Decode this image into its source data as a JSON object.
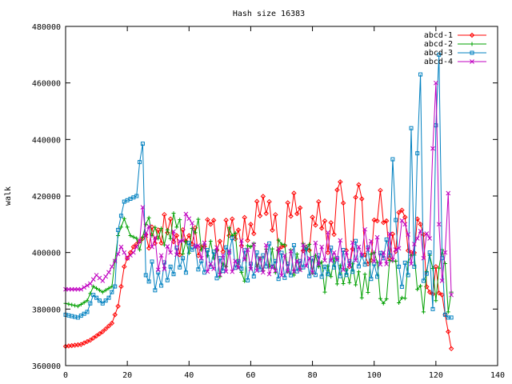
{
  "chart_data": {
    "type": "line",
    "title": "Hash size 16383",
    "xlabel": "",
    "ylabel": "walk",
    "xlim": [
      0,
      140
    ],
    "ylim": [
      360000,
      480000
    ],
    "xticks": [
      0,
      20,
      40,
      60,
      80,
      100,
      120,
      140
    ],
    "yticks": [
      360000,
      380000,
      400000,
      420000,
      440000,
      460000,
      480000
    ],
    "grid": false,
    "legend": "top-right",
    "series": [
      {
        "name": "abcd-1",
        "color": "#ff0000",
        "marker": "diamond",
        "keypoints": [
          [
            0,
            366800
          ],
          [
            5,
            367500
          ],
          [
            8,
            369000
          ],
          [
            12,
            372000
          ],
          [
            15,
            375000
          ],
          [
            17,
            381000
          ],
          [
            18,
            388000
          ],
          [
            19,
            395000
          ],
          [
            20,
            398000
          ],
          [
            22,
            402000
          ],
          [
            25,
            405000
          ],
          [
            28,
            409000
          ],
          [
            30,
            408000
          ],
          [
            33,
            407000
          ],
          [
            36,
            406000
          ],
          [
            39,
            404000
          ],
          [
            41,
            403000
          ],
          [
            44,
            402000
          ],
          [
            47,
            410000
          ],
          [
            50,
            404000
          ],
          [
            53,
            406000
          ],
          [
            56,
            408000
          ],
          [
            60,
            410000
          ],
          [
            63,
            413000
          ],
          [
            66,
            418000
          ],
          [
            70,
            402000
          ],
          [
            74,
            421000
          ],
          [
            78,
            402000
          ],
          [
            82,
            418000
          ],
          [
            85,
            400000
          ],
          [
            89,
            425000
          ],
          [
            92,
            395000
          ],
          [
            95,
            424000
          ],
          [
            98,
            396000
          ],
          [
            102,
            422000
          ],
          [
            105,
            398000
          ],
          [
            109,
            415000
          ],
          [
            112,
            400000
          ],
          [
            115,
            410000
          ],
          [
            118,
            386000
          ],
          [
            120,
            395000
          ],
          [
            122,
            385000
          ],
          [
            123,
            378000
          ],
          [
            124,
            372000
          ],
          [
            125,
            366000
          ]
        ]
      },
      {
        "name": "abcd-2",
        "color": "#00a000",
        "marker": "plus",
        "keypoints": [
          [
            0,
            382000
          ],
          [
            4,
            381000
          ],
          [
            7,
            383000
          ],
          [
            9,
            388000
          ],
          [
            12,
            386000
          ],
          [
            15,
            388000
          ],
          [
            17,
            406000
          ],
          [
            19,
            412000
          ],
          [
            21,
            406000
          ],
          [
            23,
            405000
          ],
          [
            24,
            401000
          ],
          [
            26,
            410000
          ],
          [
            28,
            406000
          ],
          [
            30,
            405000
          ],
          [
            33,
            408000
          ],
          [
            36,
            409000
          ],
          [
            39,
            404000
          ],
          [
            42,
            407000
          ],
          [
            45,
            403000
          ],
          [
            48,
            398000
          ],
          [
            51,
            396000
          ],
          [
            54,
            406000
          ],
          [
            57,
            393000
          ],
          [
            60,
            402000
          ],
          [
            63,
            398000
          ],
          [
            66,
            395000
          ],
          [
            70,
            403000
          ],
          [
            74,
            392000
          ],
          [
            78,
            401000
          ],
          [
            82,
            395000
          ],
          [
            84,
            386000
          ],
          [
            87,
            398000
          ],
          [
            90,
            389000
          ],
          [
            93,
            396000
          ],
          [
            96,
            384000
          ],
          [
            100,
            400000
          ],
          [
            103,
            382000
          ],
          [
            106,
            397000
          ],
          [
            109,
            384000
          ],
          [
            112,
            399000
          ],
          [
            114,
            387000
          ],
          [
            116,
            379000
          ],
          [
            118,
            399000
          ],
          [
            120,
            383000
          ],
          [
            122,
            401000
          ],
          [
            124,
            379000
          ],
          [
            125,
            386000
          ]
        ]
      },
      {
        "name": "abcd-3",
        "color": "#0080c0",
        "marker": "square",
        "keypoints": [
          [
            0,
            378000
          ],
          [
            4,
            377000
          ],
          [
            7,
            379000
          ],
          [
            9,
            385000
          ],
          [
            12,
            382000
          ],
          [
            14,
            384000
          ],
          [
            16,
            388000
          ],
          [
            17,
            408000
          ],
          [
            19,
            418000
          ],
          [
            21,
            419000
          ],
          [
            23,
            420000
          ],
          [
            24,
            432000
          ],
          [
            25,
            438500
          ],
          [
            26,
            392000
          ],
          [
            30,
            393000
          ],
          [
            34,
            395000
          ],
          [
            38,
            398000
          ],
          [
            41,
            401000
          ],
          [
            44,
            397000
          ],
          [
            47,
            395000
          ],
          [
            50,
            398000
          ],
          [
            53,
            400000
          ],
          [
            56,
            397000
          ],
          [
            60,
            396000
          ],
          [
            64,
            399000
          ],
          [
            68,
            397000
          ],
          [
            72,
            396000
          ],
          [
            76,
            397000
          ],
          [
            80,
            398000
          ],
          [
            84,
            395000
          ],
          [
            88,
            398000
          ],
          [
            92,
            397000
          ],
          [
            96,
            399000
          ],
          [
            100,
            396000
          ],
          [
            103,
            398000
          ],
          [
            105,
            399000
          ],
          [
            106,
            433000
          ],
          [
            108,
            395000
          ],
          [
            111,
            392000
          ],
          [
            112,
            444000
          ],
          [
            113,
            395000
          ],
          [
            115,
            463000
          ],
          [
            116,
            390000
          ],
          [
            118,
            400000
          ],
          [
            119,
            380000
          ],
          [
            120,
            445000
          ],
          [
            121,
            470000
          ],
          [
            122,
            398000
          ],
          [
            123,
            378000
          ],
          [
            124,
            377000
          ],
          [
            125,
            377000
          ]
        ]
      },
      {
        "name": "abcd-4",
        "color": "#c000c0",
        "marker": "x",
        "keypoints": [
          [
            0,
            387000
          ],
          [
            5,
            387000
          ],
          [
            8,
            389000
          ],
          [
            10,
            392000
          ],
          [
            12,
            390000
          ],
          [
            14,
            393000
          ],
          [
            16,
            397000
          ],
          [
            18,
            402000
          ],
          [
            20,
            398000
          ],
          [
            22,
            400000
          ],
          [
            24,
            404000
          ],
          [
            25,
            416000
          ],
          [
            26,
            406000
          ],
          [
            28,
            402000
          ],
          [
            31,
            399000
          ],
          [
            34,
            400000
          ],
          [
            37,
            404000
          ],
          [
            40,
            412000
          ],
          [
            42,
            402000
          ],
          [
            44,
            398000
          ],
          [
            47,
            396000
          ],
          [
            51,
            399000
          ],
          [
            55,
            397000
          ],
          [
            59,
            401000
          ],
          [
            63,
            398000
          ],
          [
            67,
            395000
          ],
          [
            71,
            399000
          ],
          [
            75,
            397000
          ],
          [
            79,
            398000
          ],
          [
            83,
            402000
          ],
          [
            87,
            400000
          ],
          [
            91,
            400000
          ],
          [
            95,
            402000
          ],
          [
            99,
            404000
          ],
          [
            103,
            400000
          ],
          [
            107,
            401000
          ],
          [
            110,
            410000
          ],
          [
            112,
            396000
          ],
          [
            114,
            405000
          ],
          [
            116,
            398000
          ],
          [
            118,
            405000
          ],
          [
            120,
            460000
          ],
          [
            121,
            410000
          ],
          [
            122,
            390000
          ],
          [
            123,
            400000
          ],
          [
            124,
            421000
          ],
          [
            125,
            385000
          ]
        ]
      }
    ]
  }
}
